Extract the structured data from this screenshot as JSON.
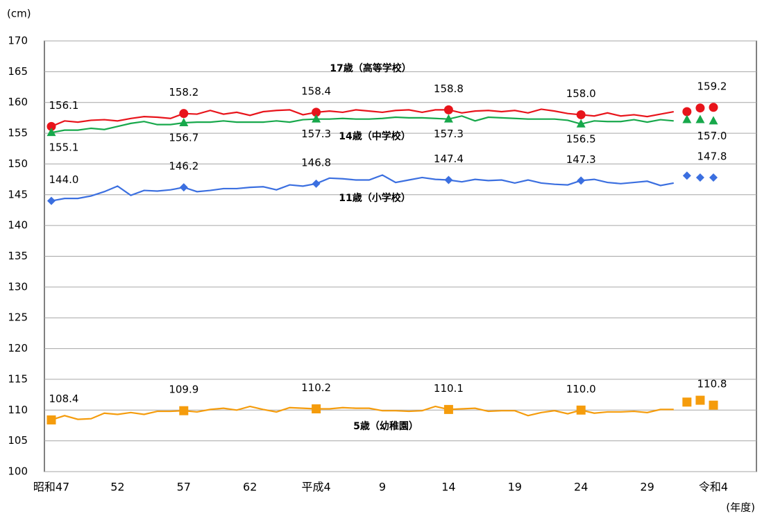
{
  "chart_data": {
    "type": "line",
    "y_unit": "(cm)",
    "x_unit": "(年度)",
    "categories": [
      "昭和47",
      null,
      null,
      null,
      null,
      "52",
      null,
      null,
      null,
      null,
      "57",
      null,
      null,
      null,
      null,
      "62",
      null,
      null,
      null,
      null,
      "平成4",
      null,
      null,
      null,
      null,
      "9",
      null,
      null,
      null,
      null,
      "14",
      null,
      null,
      null,
      null,
      "19",
      null,
      null,
      null,
      null,
      "24",
      null,
      null,
      null,
      null,
      "29",
      null,
      null,
      null,
      null,
      "令和4"
    ],
    "ylim": [
      100,
      170
    ],
    "yticks": [
      100,
      105,
      110,
      115,
      120,
      125,
      130,
      135,
      140,
      145,
      150,
      155,
      160,
      165,
      170
    ],
    "grid": true,
    "series": [
      {
        "name": "17歳（高等学校）",
        "color": "#e8141b",
        "marker": "circle",
        "values": [
          156.1,
          157.0,
          156.8,
          157.1,
          157.2,
          157.0,
          157.4,
          157.7,
          157.6,
          157.4,
          158.2,
          158.1,
          158.7,
          158.1,
          158.4,
          157.9,
          158.5,
          158.7,
          158.8,
          158.0,
          158.4,
          158.6,
          158.4,
          158.8,
          158.6,
          158.4,
          158.7,
          158.8,
          158.4,
          158.8,
          158.8,
          158.3,
          158.6,
          158.7,
          158.5,
          158.7,
          158.3,
          158.9,
          158.6,
          158.2,
          158.0,
          157.8,
          158.3,
          157.8,
          158.0,
          157.7,
          158.1,
          158.5,
          158.5,
          159.1,
          159.2
        ],
        "value_labels": [
          "156.1",
          null,
          null,
          null,
          null,
          null,
          null,
          null,
          null,
          null,
          "158.2",
          null,
          null,
          null,
          null,
          null,
          null,
          null,
          null,
          null,
          "158.4",
          null,
          null,
          null,
          null,
          null,
          null,
          null,
          null,
          null,
          "158.8",
          null,
          null,
          null,
          null,
          null,
          null,
          null,
          null,
          null,
          "158.0",
          null,
          null,
          null,
          null,
          null,
          null,
          null,
          null,
          null,
          "159.2"
        ]
      },
      {
        "name": "14歳（中学校）",
        "color": "#17a84b",
        "marker": "triangle",
        "values": [
          155.1,
          155.5,
          155.5,
          155.8,
          155.6,
          156.1,
          156.6,
          156.9,
          156.4,
          156.4,
          156.7,
          156.8,
          156.8,
          157.0,
          156.8,
          156.8,
          156.8,
          157.0,
          156.8,
          157.2,
          157.3,
          157.3,
          157.4,
          157.3,
          157.3,
          157.4,
          157.6,
          157.5,
          157.5,
          157.4,
          157.3,
          157.8,
          157.0,
          157.6,
          157.5,
          157.4,
          157.3,
          157.3,
          157.3,
          157.1,
          156.5,
          157.0,
          156.9,
          156.9,
          157.2,
          156.8,
          157.2,
          157.0,
          157.2,
          157.2,
          157.0
        ],
        "value_labels": [
          "155.1",
          null,
          null,
          null,
          null,
          null,
          null,
          null,
          null,
          null,
          "156.7",
          null,
          null,
          null,
          null,
          null,
          null,
          null,
          null,
          null,
          "157.3",
          null,
          null,
          null,
          null,
          null,
          null,
          null,
          null,
          null,
          "157.3",
          null,
          null,
          null,
          null,
          null,
          null,
          null,
          null,
          null,
          "156.5",
          null,
          null,
          null,
          null,
          null,
          null,
          null,
          null,
          null,
          "157.0"
        ]
      },
      {
        "name": "11歳（小学校）",
        "color": "#3b6fe0",
        "marker": "diamond",
        "values": [
          144.0,
          144.4,
          144.4,
          144.8,
          145.5,
          146.4,
          144.9,
          145.7,
          145.6,
          145.8,
          146.2,
          145.5,
          145.7,
          146.0,
          146.0,
          146.2,
          146.3,
          145.8,
          146.6,
          146.4,
          146.8,
          147.7,
          147.6,
          147.4,
          147.4,
          148.2,
          147.0,
          147.4,
          147.8,
          147.5,
          147.4,
          147.1,
          147.5,
          147.3,
          147.4,
          146.9,
          147.4,
          146.9,
          146.7,
          146.6,
          147.3,
          147.5,
          147.0,
          146.8,
          147.0,
          147.2,
          146.5,
          146.9,
          148.1,
          147.8,
          147.8
        ],
        "value_labels": [
          "144.0",
          null,
          null,
          null,
          null,
          null,
          null,
          null,
          null,
          null,
          "146.2",
          null,
          null,
          null,
          null,
          null,
          null,
          null,
          null,
          null,
          "146.8",
          null,
          null,
          null,
          null,
          null,
          null,
          null,
          null,
          null,
          "147.4",
          null,
          null,
          null,
          null,
          null,
          null,
          null,
          null,
          null,
          "147.3",
          null,
          null,
          null,
          null,
          null,
          null,
          null,
          null,
          null,
          "147.8"
        ]
      },
      {
        "name": "5歳（幼稚園）",
        "color": "#f59c0c",
        "marker": "square",
        "values": [
          108.4,
          109.1,
          108.5,
          108.6,
          109.5,
          109.3,
          109.6,
          109.3,
          109.8,
          109.8,
          109.9,
          109.7,
          110.1,
          110.3,
          110.0,
          110.6,
          110.1,
          109.7,
          110.4,
          110.3,
          110.2,
          110.2,
          110.4,
          110.3,
          110.3,
          109.9,
          109.9,
          109.8,
          109.9,
          110.6,
          110.1,
          110.2,
          110.3,
          109.8,
          109.9,
          109.9,
          109.1,
          109.6,
          109.9,
          109.4,
          110.0,
          109.5,
          109.7,
          109.7,
          109.8,
          109.6,
          110.1,
          110.1,
          111.3,
          111.6,
          110.8
        ],
        "value_labels": [
          "108.4",
          null,
          null,
          null,
          null,
          null,
          null,
          null,
          null,
          null,
          "109.9",
          null,
          null,
          null,
          null,
          null,
          null,
          null,
          null,
          null,
          "110.2",
          null,
          null,
          null,
          null,
          null,
          null,
          null,
          null,
          null,
          "110.1",
          null,
          null,
          null,
          null,
          null,
          null,
          null,
          null,
          null,
          "110.0",
          null,
          null,
          null,
          null,
          null,
          null,
          null,
          null,
          null,
          "110.8"
        ]
      }
    ]
  }
}
